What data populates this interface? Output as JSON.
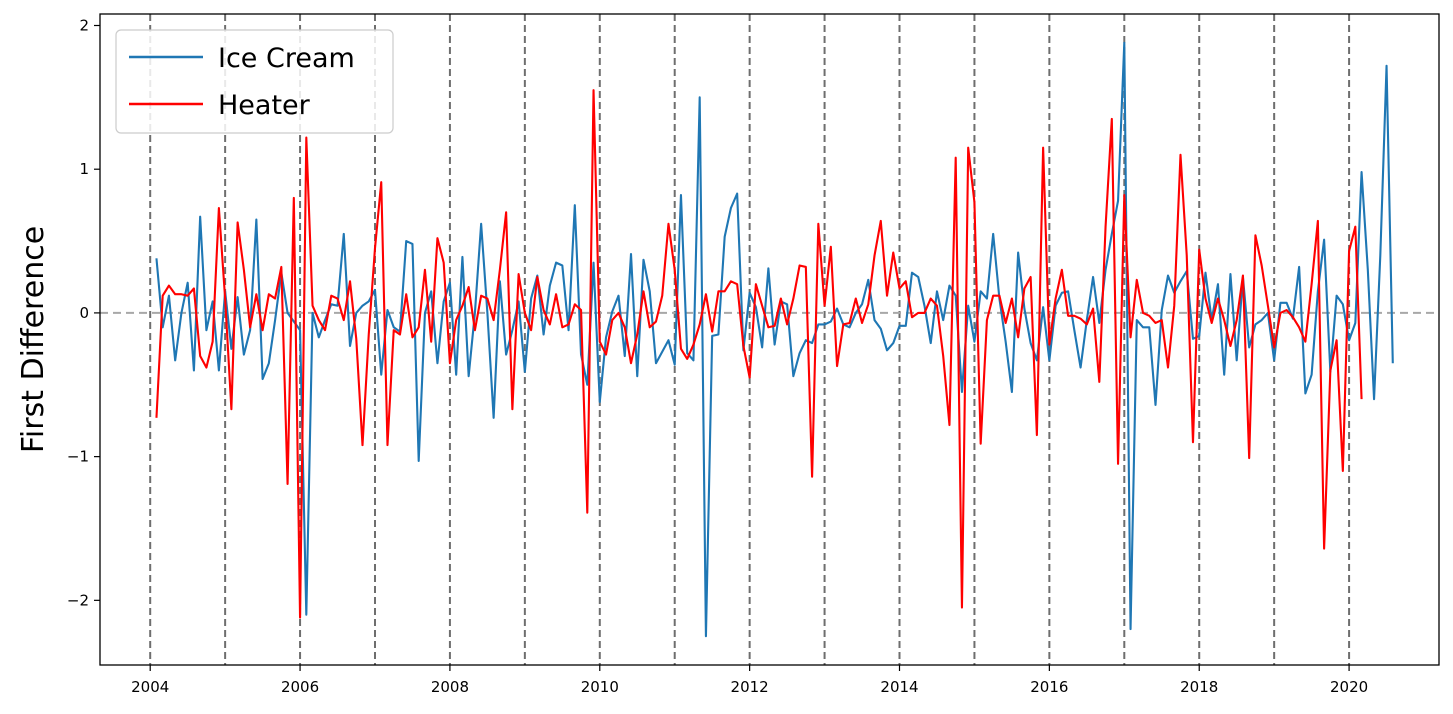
{
  "chart_data": {
    "type": "line",
    "title": "",
    "xlabel": "",
    "ylabel": "First Difference",
    "xlim": [
      2003.33,
      2021.2
    ],
    "ylim": [
      -2.45,
      2.08
    ],
    "x_ticks": [
      2004,
      2006,
      2008,
      2010,
      2012,
      2014,
      2016,
      2018,
      2020
    ],
    "x_tick_labels": [
      "2004",
      "2006",
      "2008",
      "2010",
      "2012",
      "2014",
      "2016",
      "2018",
      "2020"
    ],
    "y_ticks": [
      -2,
      -1,
      0,
      1,
      2
    ],
    "y_tick_labels": [
      "−2",
      "−1",
      "0",
      "1",
      "2"
    ],
    "vertical_lines": [
      2004,
      2005,
      2006,
      2007,
      2008,
      2009,
      2010,
      2011,
      2012,
      2013,
      2014,
      2015,
      2016,
      2017,
      2018,
      2019,
      2020
    ],
    "horizontal_line": 0,
    "legend_position": "top-left",
    "x_start": "2004-02",
    "x_step": "month",
    "series": [
      {
        "name": "Ice Cream",
        "color": "#1f77b4",
        "values": [
          0.38,
          -0.1,
          0.12,
          -0.33,
          0.0,
          0.21,
          -0.4,
          0.67,
          -0.12,
          0.08,
          -0.4,
          0.15,
          -0.25,
          0.11,
          -0.29,
          -0.12,
          0.65,
          -0.46,
          -0.35,
          -0.05,
          0.28,
          0.0,
          -0.06,
          -0.12,
          -2.1,
          0.0,
          -0.17,
          -0.05,
          0.06,
          0.05,
          0.55,
          -0.23,
          0.0,
          0.05,
          0.08,
          0.16,
          -0.43,
          0.02,
          -0.1,
          -0.13,
          0.5,
          0.48,
          -1.03,
          0.0,
          0.15,
          -0.35,
          0.08,
          0.21,
          -0.43,
          0.39,
          -0.44,
          0.0,
          0.62,
          0.0,
          -0.73,
          0.22,
          -0.29,
          -0.12,
          0.08,
          -0.41,
          0.1,
          0.26,
          -0.15,
          0.19,
          0.35,
          0.33,
          -0.12,
          0.75,
          -0.29,
          -0.5,
          0.35,
          -0.62,
          -0.17,
          0.01,
          0.12,
          -0.3,
          0.41,
          -0.44,
          0.37,
          0.15,
          -0.35,
          -0.27,
          -0.19,
          -0.36,
          0.82,
          -0.28,
          -0.33,
          1.5,
          -2.25,
          -0.16,
          -0.15,
          0.53,
          0.73,
          0.83,
          -0.26,
          0.14,
          0.04,
          -0.24,
          0.31,
          -0.22,
          0.08,
          0.06,
          -0.44,
          -0.28,
          -0.19,
          -0.21,
          -0.08,
          -0.08,
          -0.06,
          0.03,
          -0.08,
          -0.1,
          0.0,
          0.06,
          0.23,
          -0.05,
          -0.11,
          -0.26,
          -0.21,
          -0.09,
          -0.09,
          0.28,
          0.25,
          0.05,
          -0.21,
          0.15,
          -0.05,
          0.19,
          0.12,
          -0.55,
          0.05,
          -0.2,
          0.15,
          0.1,
          0.55,
          0.1,
          -0.2,
          -0.55,
          0.42,
          0.03,
          -0.21,
          -0.33,
          0.04,
          -0.33,
          0.05,
          0.14,
          0.15,
          -0.12,
          -0.38,
          -0.05,
          0.25,
          -0.07,
          0.3,
          0.55,
          0.78,
          1.88,
          -2.2,
          -0.05,
          -0.1,
          -0.1,
          -0.64,
          0.02,
          0.26,
          0.14,
          0.22,
          0.29,
          -0.18,
          -0.16,
          0.28,
          -0.05,
          0.2,
          -0.43,
          0.27,
          -0.33,
          0.25,
          -0.24,
          -0.08,
          -0.05,
          0.0,
          -0.33,
          0.07,
          0.07,
          -0.04,
          0.32,
          -0.56,
          -0.43,
          0.15,
          0.51,
          -0.41,
          0.12,
          0.06,
          -0.19,
          -0.07,
          0.98,
          0.3,
          -0.6,
          0.4,
          1.72,
          -0.35
        ]
      },
      {
        "name": "Heater",
        "color": "#ff0000",
        "values": [
          -0.73,
          0.12,
          0.19,
          0.13,
          0.13,
          0.12,
          0.17,
          -0.3,
          -0.38,
          -0.2,
          0.73,
          0.1,
          -0.67,
          0.63,
          0.3,
          -0.1,
          0.13,
          -0.12,
          0.13,
          0.1,
          0.32,
          -1.19,
          0.8,
          -2.12,
          1.22,
          0.05,
          -0.05,
          -0.12,
          0.12,
          0.1,
          -0.05,
          0.22,
          -0.18,
          -0.92,
          -0.15,
          0.45,
          0.91,
          -0.92,
          -0.12,
          -0.15,
          0.13,
          -0.17,
          -0.1,
          0.3,
          -0.2,
          0.52,
          0.35,
          -0.35,
          -0.05,
          0.05,
          0.18,
          -0.12,
          0.12,
          0.1,
          -0.05,
          0.3,
          0.7,
          -0.67,
          0.27,
          0.0,
          -0.12,
          0.25,
          0.02,
          -0.08,
          0.13,
          -0.1,
          -0.08,
          0.06,
          0.02,
          -1.39,
          1.55,
          -0.2,
          -0.29,
          -0.05,
          0.0,
          -0.1,
          -0.35,
          -0.15,
          0.15,
          -0.1,
          -0.06,
          0.12,
          0.62,
          0.3,
          -0.25,
          -0.32,
          -0.22,
          -0.08,
          0.13,
          -0.13,
          0.15,
          0.15,
          0.22,
          0.2,
          -0.23,
          -0.45,
          0.2,
          0.05,
          -0.1,
          -0.09,
          0.1,
          -0.08,
          0.1,
          0.33,
          0.32,
          -1.14,
          0.62,
          0.05,
          0.46,
          -0.37,
          -0.08,
          -0.07,
          0.1,
          -0.07,
          0.06,
          0.4,
          0.64,
          0.12,
          0.42,
          0.17,
          0.22,
          -0.03,
          0.0,
          0.0,
          0.1,
          0.05,
          -0.3,
          -0.78,
          1.08,
          -2.05,
          1.15,
          0.77,
          -0.91,
          -0.05,
          0.12,
          0.12,
          -0.07,
          0.1,
          -0.17,
          0.17,
          0.25,
          -0.85,
          1.15,
          -0.22,
          0.1,
          0.3,
          -0.02,
          -0.02,
          -0.04,
          -0.08,
          0.03,
          -0.48,
          0.6,
          1.35,
          -1.05,
          0.82,
          -0.17,
          0.23,
          0.0,
          -0.02,
          -0.07,
          -0.05,
          -0.38,
          0.05,
          1.1,
          0.4,
          -0.9,
          0.44,
          0.1,
          -0.07,
          0.1,
          -0.05,
          -0.23,
          -0.05,
          0.26,
          -1.01,
          0.54,
          0.33,
          0.05,
          -0.24,
          0.0,
          0.02,
          -0.03,
          -0.1,
          -0.2,
          0.2,
          0.64,
          -1.64,
          -0.4,
          -0.19,
          -1.1,
          0.43,
          0.6,
          -0.6
        ]
      }
    ]
  }
}
